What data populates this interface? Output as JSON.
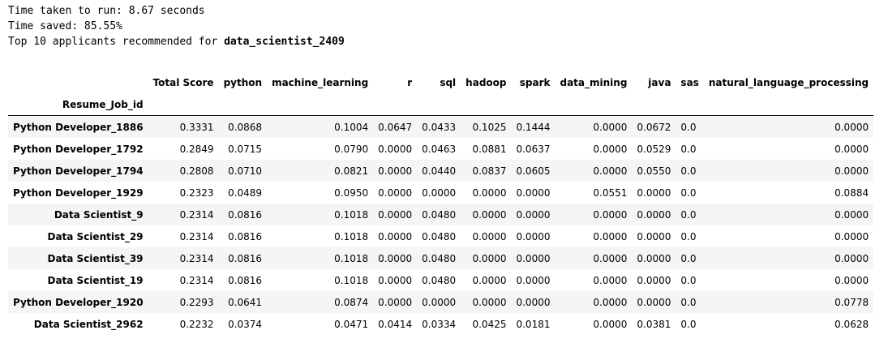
{
  "output": {
    "line1": "Time taken to run: 8.67 seconds",
    "line2": "Time saved: 85.55%",
    "line3_prefix": "Top 10 applicants recommended for ",
    "line3_job": "data_scientist_2409"
  },
  "table": {
    "index_name": "Resume_Job_id",
    "columns": [
      "Total Score",
      "python",
      "machine_learning",
      "r",
      "sql",
      "hadoop",
      "spark",
      "data_mining",
      "java",
      "sas",
      "natural_language_processing"
    ],
    "rows": [
      {
        "id": "Python Developer_1886",
        "values": [
          "0.3331",
          "0.0868",
          "0.1004",
          "0.0647",
          "0.0433",
          "0.1025",
          "0.1444",
          "0.0000",
          "0.0672",
          "0.0",
          "0.0000"
        ]
      },
      {
        "id": "Python Developer_1792",
        "values": [
          "0.2849",
          "0.0715",
          "0.0790",
          "0.0000",
          "0.0463",
          "0.0881",
          "0.0637",
          "0.0000",
          "0.0529",
          "0.0",
          "0.0000"
        ]
      },
      {
        "id": "Python Developer_1794",
        "values": [
          "0.2808",
          "0.0710",
          "0.0821",
          "0.0000",
          "0.0440",
          "0.0837",
          "0.0605",
          "0.0000",
          "0.0550",
          "0.0",
          "0.0000"
        ]
      },
      {
        "id": "Python Developer_1929",
        "values": [
          "0.2323",
          "0.0489",
          "0.0950",
          "0.0000",
          "0.0000",
          "0.0000",
          "0.0000",
          "0.0551",
          "0.0000",
          "0.0",
          "0.0884"
        ]
      },
      {
        "id": "Data Scientist_9",
        "values": [
          "0.2314",
          "0.0816",
          "0.1018",
          "0.0000",
          "0.0480",
          "0.0000",
          "0.0000",
          "0.0000",
          "0.0000",
          "0.0",
          "0.0000"
        ]
      },
      {
        "id": "Data Scientist_29",
        "values": [
          "0.2314",
          "0.0816",
          "0.1018",
          "0.0000",
          "0.0480",
          "0.0000",
          "0.0000",
          "0.0000",
          "0.0000",
          "0.0",
          "0.0000"
        ]
      },
      {
        "id": "Data Scientist_39",
        "values": [
          "0.2314",
          "0.0816",
          "0.1018",
          "0.0000",
          "0.0480",
          "0.0000",
          "0.0000",
          "0.0000",
          "0.0000",
          "0.0",
          "0.0000"
        ]
      },
      {
        "id": "Data Scientist_19",
        "values": [
          "0.2314",
          "0.0816",
          "0.1018",
          "0.0000",
          "0.0480",
          "0.0000",
          "0.0000",
          "0.0000",
          "0.0000",
          "0.0",
          "0.0000"
        ]
      },
      {
        "id": "Python Developer_1920",
        "values": [
          "0.2293",
          "0.0641",
          "0.0874",
          "0.0000",
          "0.0000",
          "0.0000",
          "0.0000",
          "0.0000",
          "0.0000",
          "0.0",
          "0.0778"
        ]
      },
      {
        "id": "Data Scientist_2962",
        "values": [
          "0.2232",
          "0.0374",
          "0.0471",
          "0.0414",
          "0.0334",
          "0.0425",
          "0.0181",
          "0.0000",
          "0.0381",
          "0.0",
          "0.0628"
        ]
      }
    ]
  }
}
